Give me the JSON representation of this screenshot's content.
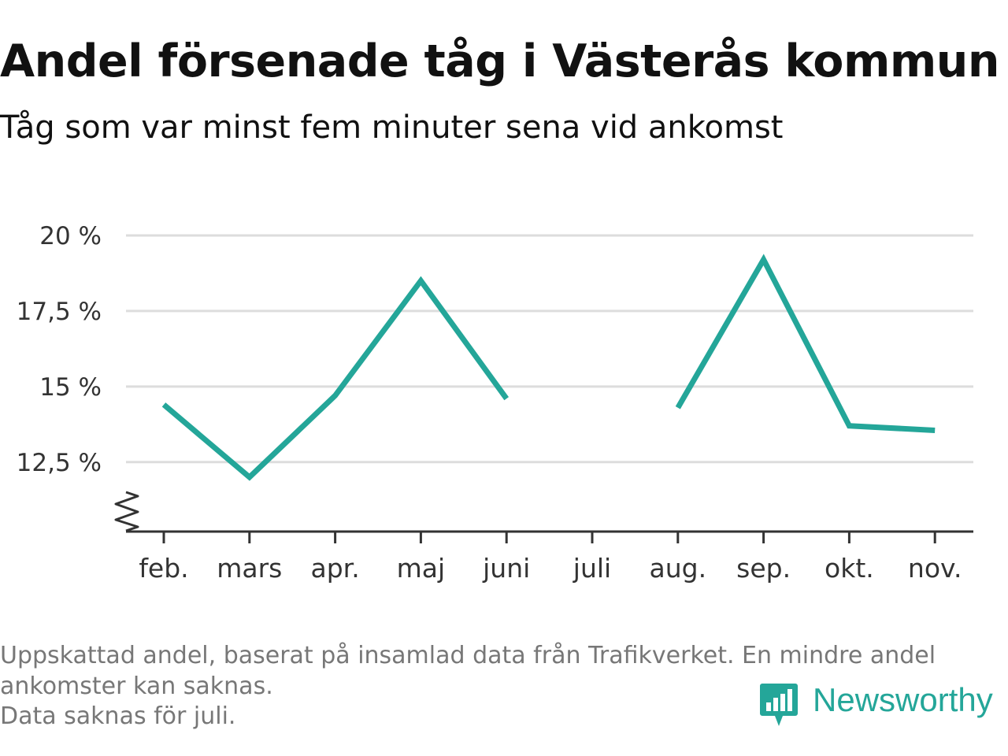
{
  "title": "Andel försenade tåg i Västerås kommun",
  "subtitle": "Tåg som var minst fem minuter sena vid ankomst",
  "footnote": {
    "line1": "Uppskattad andel, baserat på insamlad data från Trafikverket. En mindre andel",
    "line2": "ankomster kan saknas.",
    "line3": "Data saknas för juli."
  },
  "brand": {
    "name": "Newsworthy",
    "color": "#24a699"
  },
  "chart_data": {
    "type": "line",
    "categories": [
      "feb.",
      "mars",
      "apr.",
      "maj",
      "juni",
      "juli",
      "aug.",
      "sep.",
      "okt.",
      "nov."
    ],
    "series": [
      {
        "values": [
          14.4,
          12.0,
          14.7,
          18.5,
          14.6,
          null,
          14.3,
          19.2,
          13.7,
          13.55
        ]
      }
    ],
    "yticks": [
      "12,5 %",
      "15 %",
      "17,5 %",
      "20 %"
    ],
    "ytick_values": [
      12.5,
      15,
      17.5,
      20
    ],
    "ylim": [
      10.2,
      20
    ],
    "axis_break": true,
    "grid": true,
    "line_color": "#24a699",
    "grid_color": "#dddddd"
  }
}
